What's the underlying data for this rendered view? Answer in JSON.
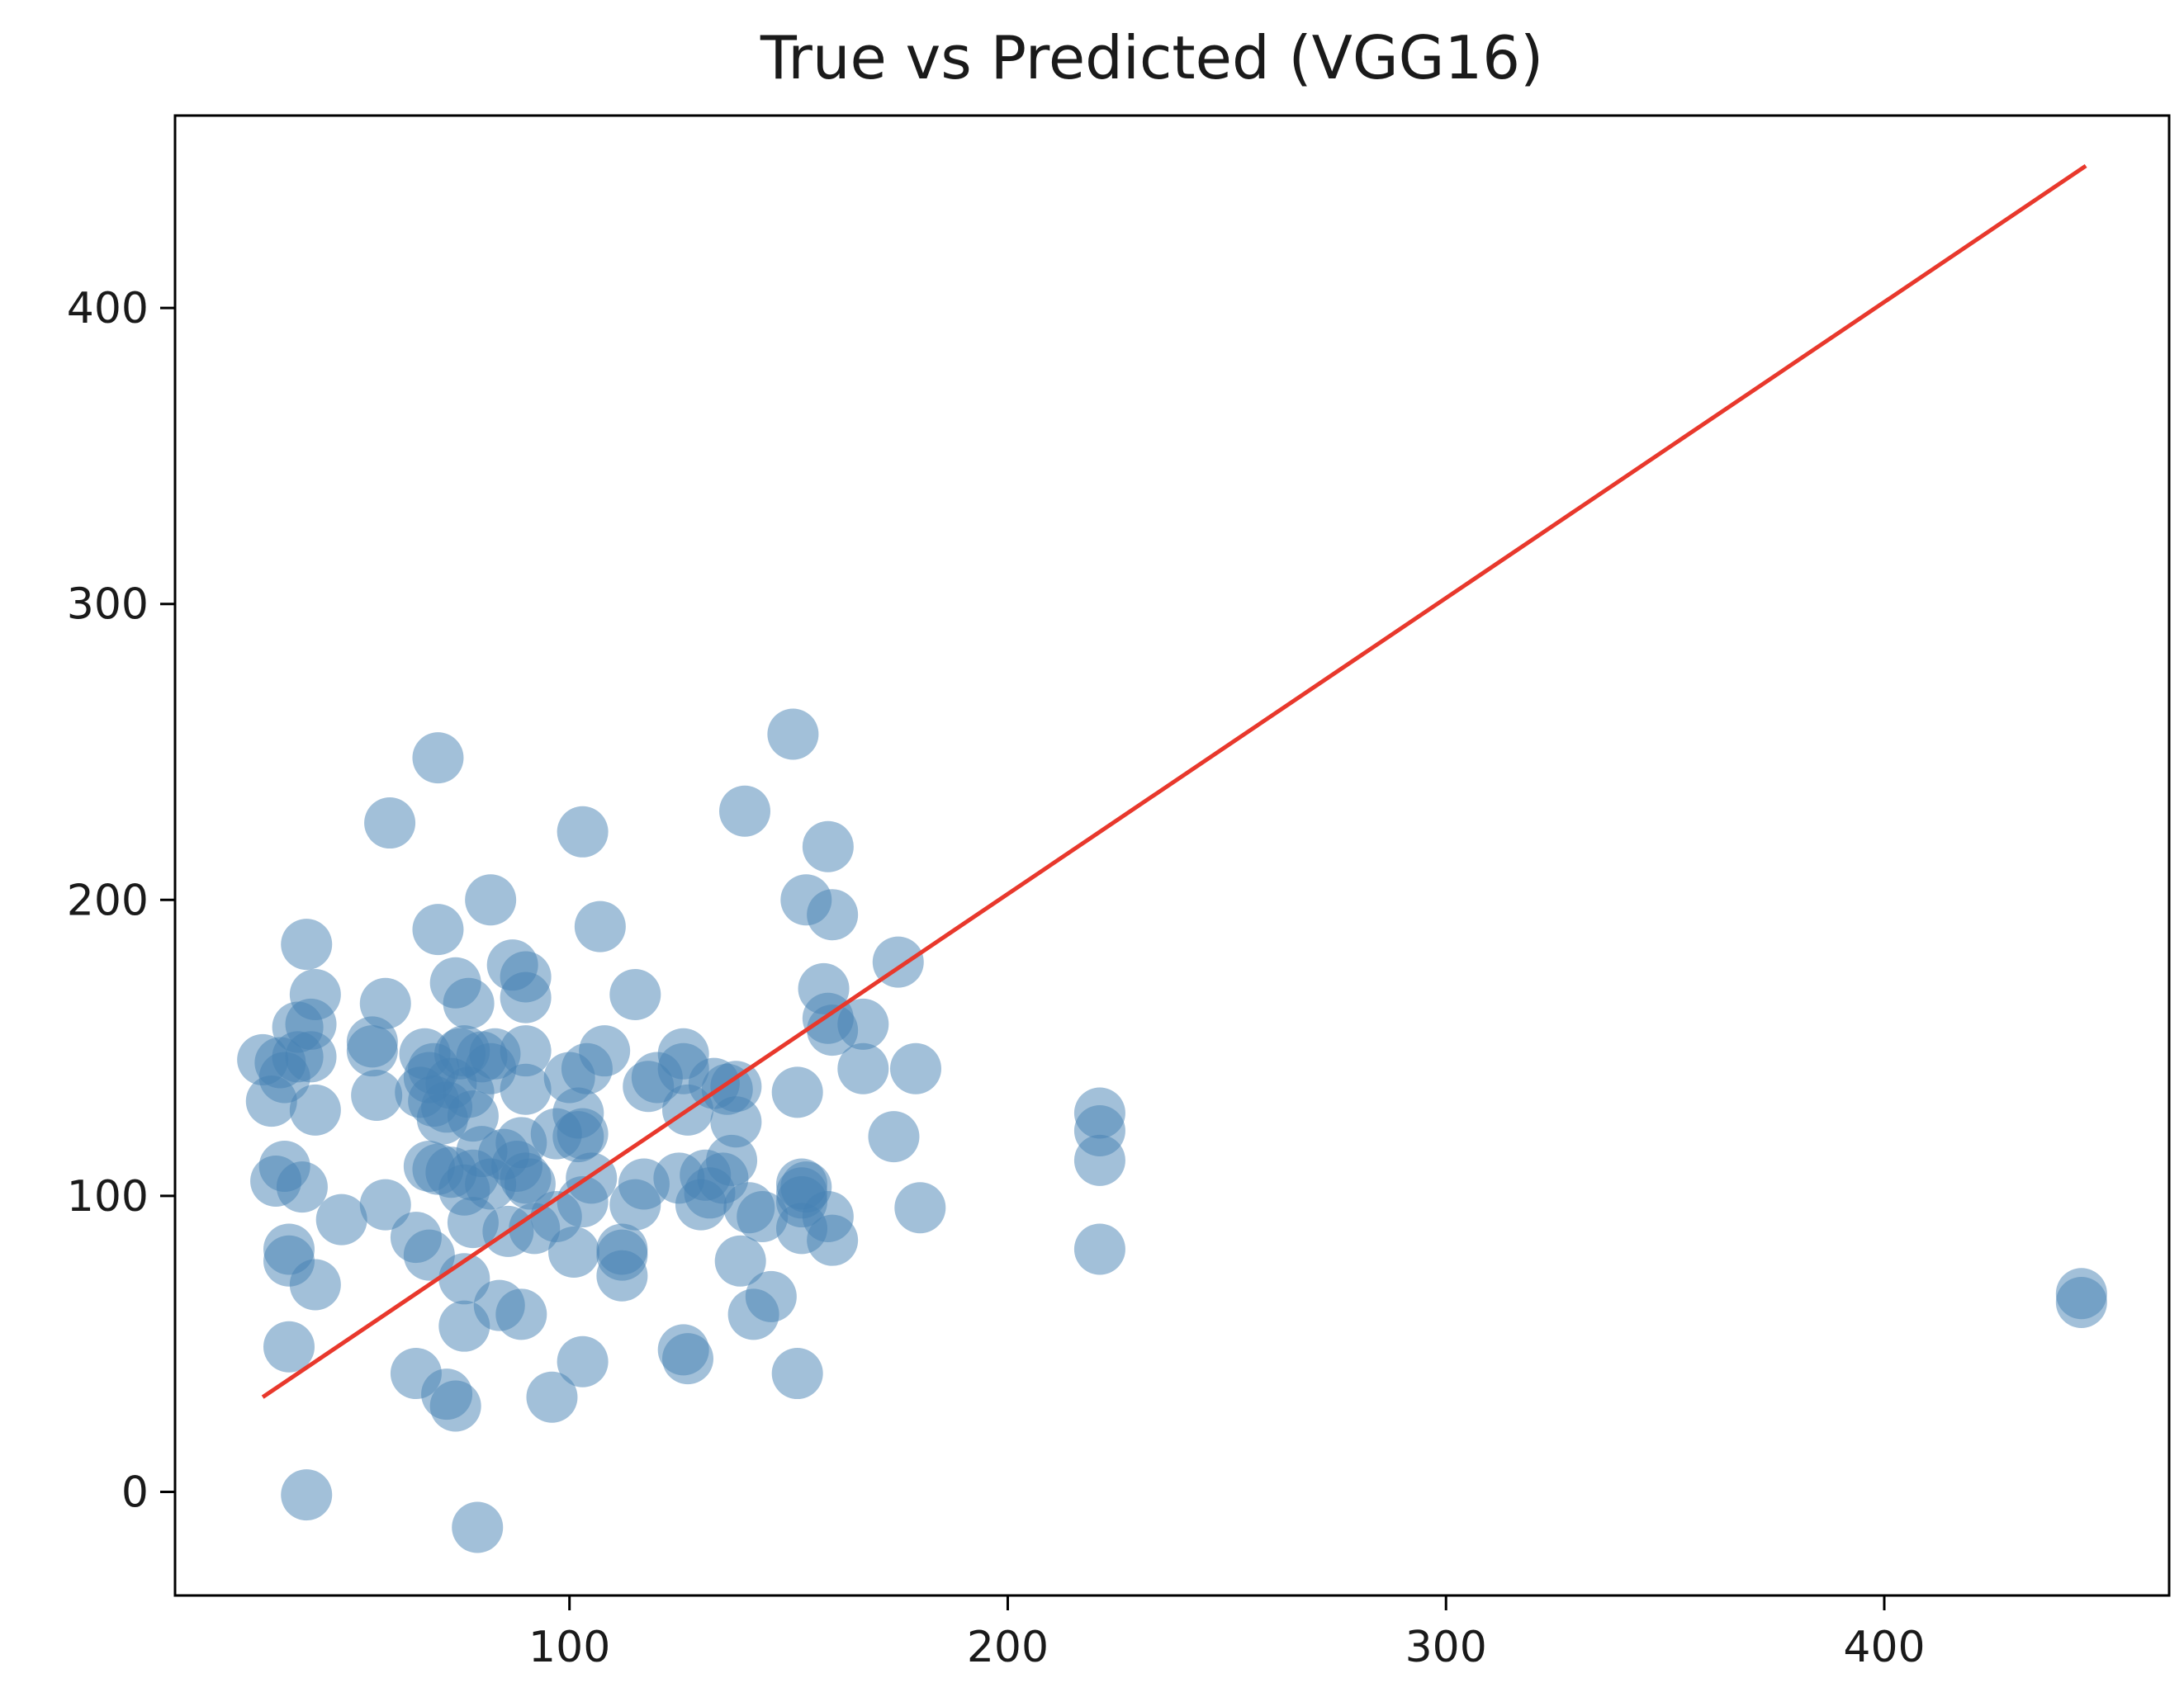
{
  "chart_data": {
    "type": "scatter",
    "title": "True vs Predicted (VGG16)",
    "xlabel": "",
    "ylabel": "",
    "xlim": [
      10,
      465
    ],
    "ylim": [
      -35,
      465
    ],
    "xticks": [
      100,
      200,
      300,
      400
    ],
    "yticks": [
      0,
      100,
      200,
      300,
      400
    ],
    "grid": false,
    "colors": {
      "points": "#4682b4",
      "line": "#e8382c",
      "axes": "#000000"
    },
    "series": [
      {
        "kind": "points",
        "points": [
          [
            30,
            146
          ],
          [
            32,
            132
          ],
          [
            33,
            105
          ],
          [
            34,
            145
          ],
          [
            35,
            140
          ],
          [
            35,
            110
          ],
          [
            36,
            82
          ],
          [
            36,
            78
          ],
          [
            36,
            49
          ],
          [
            38,
            147
          ],
          [
            38,
            157
          ],
          [
            39,
            103
          ],
          [
            40,
            185
          ],
          [
            40,
            -1
          ],
          [
            41,
            158
          ],
          [
            41,
            147
          ],
          [
            42,
            70
          ],
          [
            42,
            168
          ],
          [
            42,
            129
          ],
          [
            48,
            92
          ],
          [
            55,
            152
          ],
          [
            55,
            149
          ],
          [
            56,
            134
          ],
          [
            58,
            165
          ],
          [
            58,
            97
          ],
          [
            59,
            226
          ],
          [
            65,
            86
          ],
          [
            65,
            40
          ],
          [
            66,
            135
          ],
          [
            67,
            148
          ],
          [
            68,
            110
          ],
          [
            68,
            140
          ],
          [
            68,
            80
          ],
          [
            69,
            143
          ],
          [
            69,
            132
          ],
          [
            70,
            248
          ],
          [
            70,
            190
          ],
          [
            70,
            109
          ],
          [
            71,
            126
          ],
          [
            72,
            33
          ],
          [
            72,
            130
          ],
          [
            73,
            138
          ],
          [
            73,
            108
          ],
          [
            74,
            172
          ],
          [
            74,
            29
          ],
          [
            75,
            148
          ],
          [
            76,
            149
          ],
          [
            76,
            102
          ],
          [
            76,
            72
          ],
          [
            76,
            56
          ],
          [
            77,
            165
          ],
          [
            77,
            135
          ],
          [
            78,
            127
          ],
          [
            78,
            107
          ],
          [
            78,
            91
          ],
          [
            79,
            -12
          ],
          [
            80,
            115
          ],
          [
            80,
            147
          ],
          [
            82,
            143
          ],
          [
            82,
            200
          ],
          [
            82,
            104
          ],
          [
            83,
            148
          ],
          [
            84,
            63
          ],
          [
            85,
            114
          ],
          [
            86,
            88
          ],
          [
            87,
            178
          ],
          [
            88,
            110
          ],
          [
            89,
            60
          ],
          [
            89,
            118
          ],
          [
            90,
            174
          ],
          [
            90,
            167
          ],
          [
            90,
            136
          ],
          [
            90,
            106
          ],
          [
            90,
            149
          ],
          [
            91,
            104
          ],
          [
            92,
            89
          ],
          [
            97,
            121
          ],
          [
            97,
            93
          ],
          [
            96,
            32
          ],
          [
            100,
            140
          ],
          [
            101,
            81
          ],
          [
            102,
            128
          ],
          [
            102,
            120
          ],
          [
            103,
            223
          ],
          [
            103,
            121
          ],
          [
            103,
            44
          ],
          [
            103,
            98
          ],
          [
            104,
            143
          ],
          [
            105,
            106
          ],
          [
            107,
            191
          ],
          [
            108,
            149
          ],
          [
            112,
            82
          ],
          [
            112,
            73
          ],
          [
            112,
            80
          ],
          [
            115,
            168
          ],
          [
            115,
            97
          ],
          [
            117,
            104
          ],
          [
            118,
            137
          ],
          [
            120,
            140
          ],
          [
            125,
            106
          ],
          [
            126,
            148
          ],
          [
            126,
            143
          ],
          [
            126,
            48
          ],
          [
            127,
            45
          ],
          [
            127,
            129
          ],
          [
            130,
            97
          ],
          [
            131,
            107
          ],
          [
            132,
            101
          ],
          [
            133,
            138
          ],
          [
            135,
            106
          ],
          [
            136,
            136
          ],
          [
            137,
            112
          ],
          [
            138,
            137
          ],
          [
            138,
            125
          ],
          [
            139,
            78
          ],
          [
            140,
            230
          ],
          [
            141,
            96
          ],
          [
            142,
            60
          ],
          [
            144,
            93
          ],
          [
            146,
            66
          ],
          [
            151,
            256
          ],
          [
            152,
            135
          ],
          [
            152,
            40
          ],
          [
            153,
            104
          ],
          [
            153,
            101
          ],
          [
            153,
            98
          ],
          [
            153,
            89
          ],
          [
            154,
            103
          ],
          [
            154,
            200
          ],
          [
            158,
            170
          ],
          [
            159,
            160
          ],
          [
            159,
            218
          ],
          [
            159,
            93
          ],
          [
            160,
            156
          ],
          [
            160,
            85
          ],
          [
            160,
            195
          ],
          [
            167,
            143
          ],
          [
            167,
            158
          ],
          [
            174,
            120
          ],
          [
            175,
            179
          ],
          [
            179,
            143
          ],
          [
            180,
            96
          ],
          [
            221,
            128
          ],
          [
            221,
            122
          ],
          [
            221,
            112
          ],
          [
            221,
            82
          ],
          [
            445,
            67
          ],
          [
            445,
            64
          ]
        ]
      },
      {
        "kind": "line",
        "points": [
          [
            30,
            32
          ],
          [
            446,
            448
          ]
        ]
      }
    ]
  }
}
